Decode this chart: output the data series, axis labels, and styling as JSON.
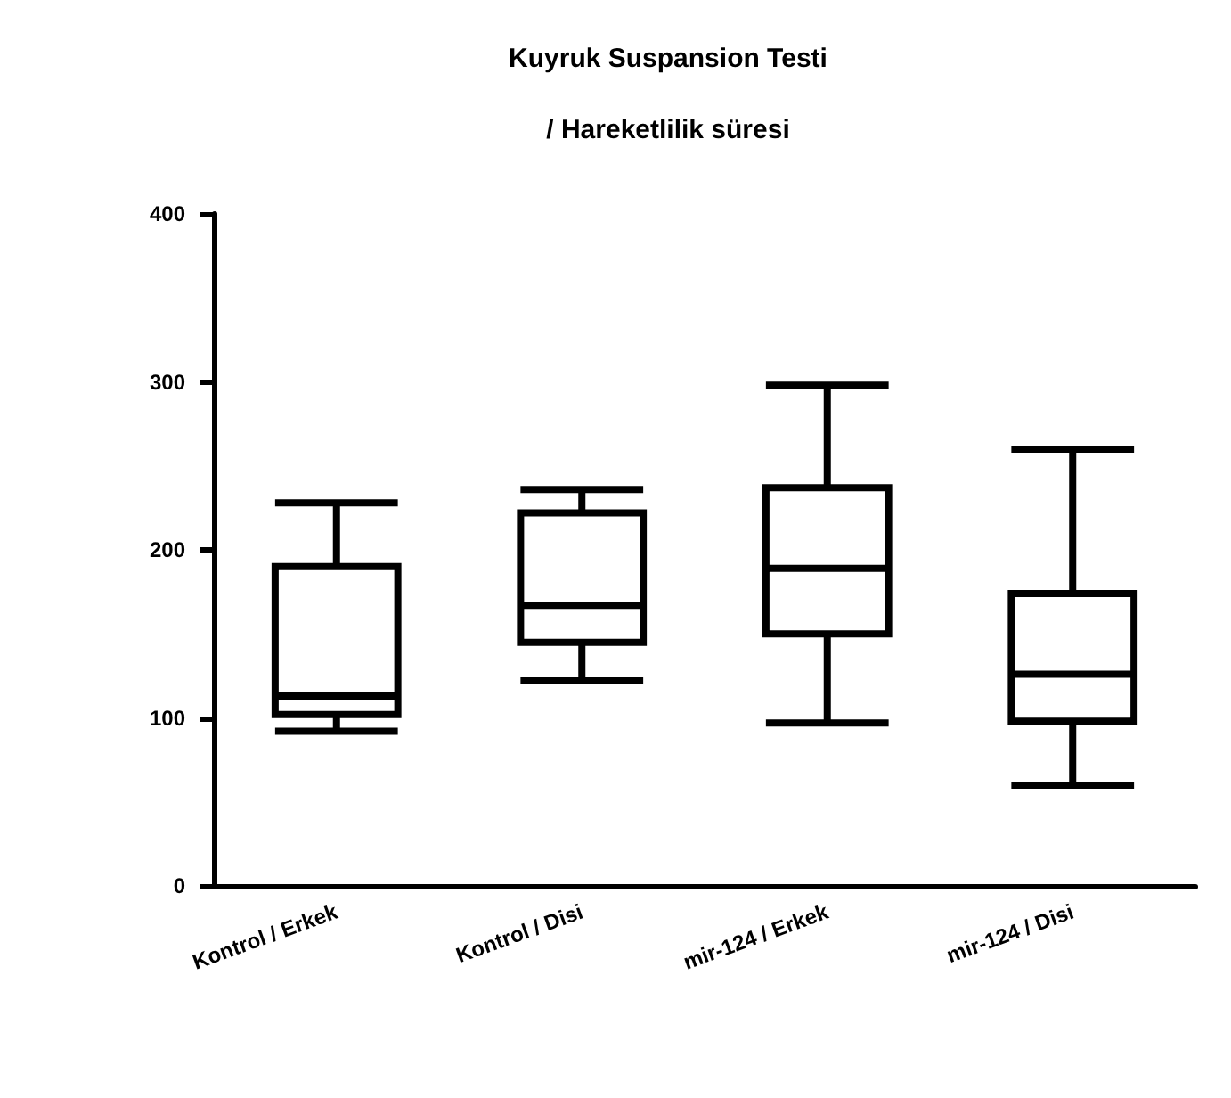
{
  "chart_data": {
    "type": "box",
    "title": "Kuyruk Suspansion Testi\n/ Hareketlilik süresi",
    "categories": [
      "Kontrol / Erkek",
      "Kontrol / Disi",
      "mir-124 / Erkek",
      "mir-124 / Disi"
    ],
    "boxes": [
      {
        "low": 92,
        "q1": 102,
        "median": 113,
        "q3": 190,
        "high": 228
      },
      {
        "low": 122,
        "q1": 145,
        "median": 167,
        "q3": 222,
        "high": 236
      },
      {
        "low": 97,
        "q1": 150,
        "median": 189,
        "q3": 237,
        "high": 298
      },
      {
        "low": 60,
        "q1": 98,
        "median": 126,
        "q3": 174,
        "high": 260
      }
    ],
    "color": "#000000",
    "ylim": [
      0,
      400
    ],
    "yticks": [
      0,
      100,
      200,
      300,
      400
    ],
    "grid": false
  }
}
